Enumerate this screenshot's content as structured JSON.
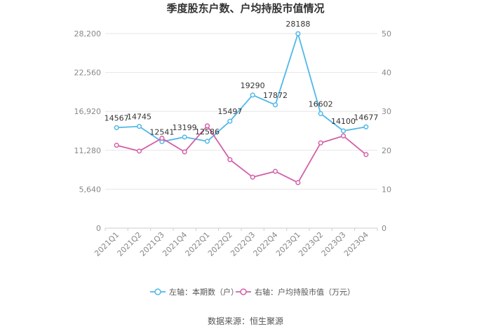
{
  "chart_data": {
    "type": "line",
    "title": "季度股东户数、户均持股市值情况",
    "source": "数据来源：恒生聚源",
    "categories": [
      "2021Q1",
      "2021Q2",
      "2021Q3",
      "2021Q4",
      "2022Q1",
      "2022Q2",
      "2022Q3",
      "2022Q4",
      "2023Q1",
      "2023Q2",
      "2023Q3",
      "2023Q4"
    ],
    "left_axis": {
      "min": 0,
      "max": 28200,
      "ticks": [
        "0",
        "5,640",
        "11,280",
        "16,920",
        "22,560",
        "28,200"
      ]
    },
    "right_axis": {
      "min": 0,
      "max": 50,
      "ticks": [
        "0",
        "10",
        "20",
        "30",
        "40",
        "50"
      ]
    },
    "series": [
      {
        "name": "左轴：本期数（户）",
        "axis": "left",
        "color": "#4fb8e8",
        "values": [
          14567,
          14745,
          12541,
          13199,
          12586,
          15497,
          19290,
          17872,
          28188,
          16602,
          14100,
          14677
        ],
        "labels": [
          "14567",
          "14745",
          "12541",
          "13199",
          "12586",
          "15497",
          "19290",
          "17872",
          "28188",
          "16602",
          "14100",
          "14677"
        ]
      },
      {
        "name": "右轴：户均持股市值（万元）",
        "axis": "right",
        "color": "#d45fa8",
        "values": [
          21.3,
          19.8,
          23.1,
          19.6,
          26.3,
          17.6,
          13.1,
          14.6,
          11.7,
          21.9,
          23.7,
          18.9
        ]
      }
    ],
    "legend_position": "bottom",
    "grid": true
  }
}
